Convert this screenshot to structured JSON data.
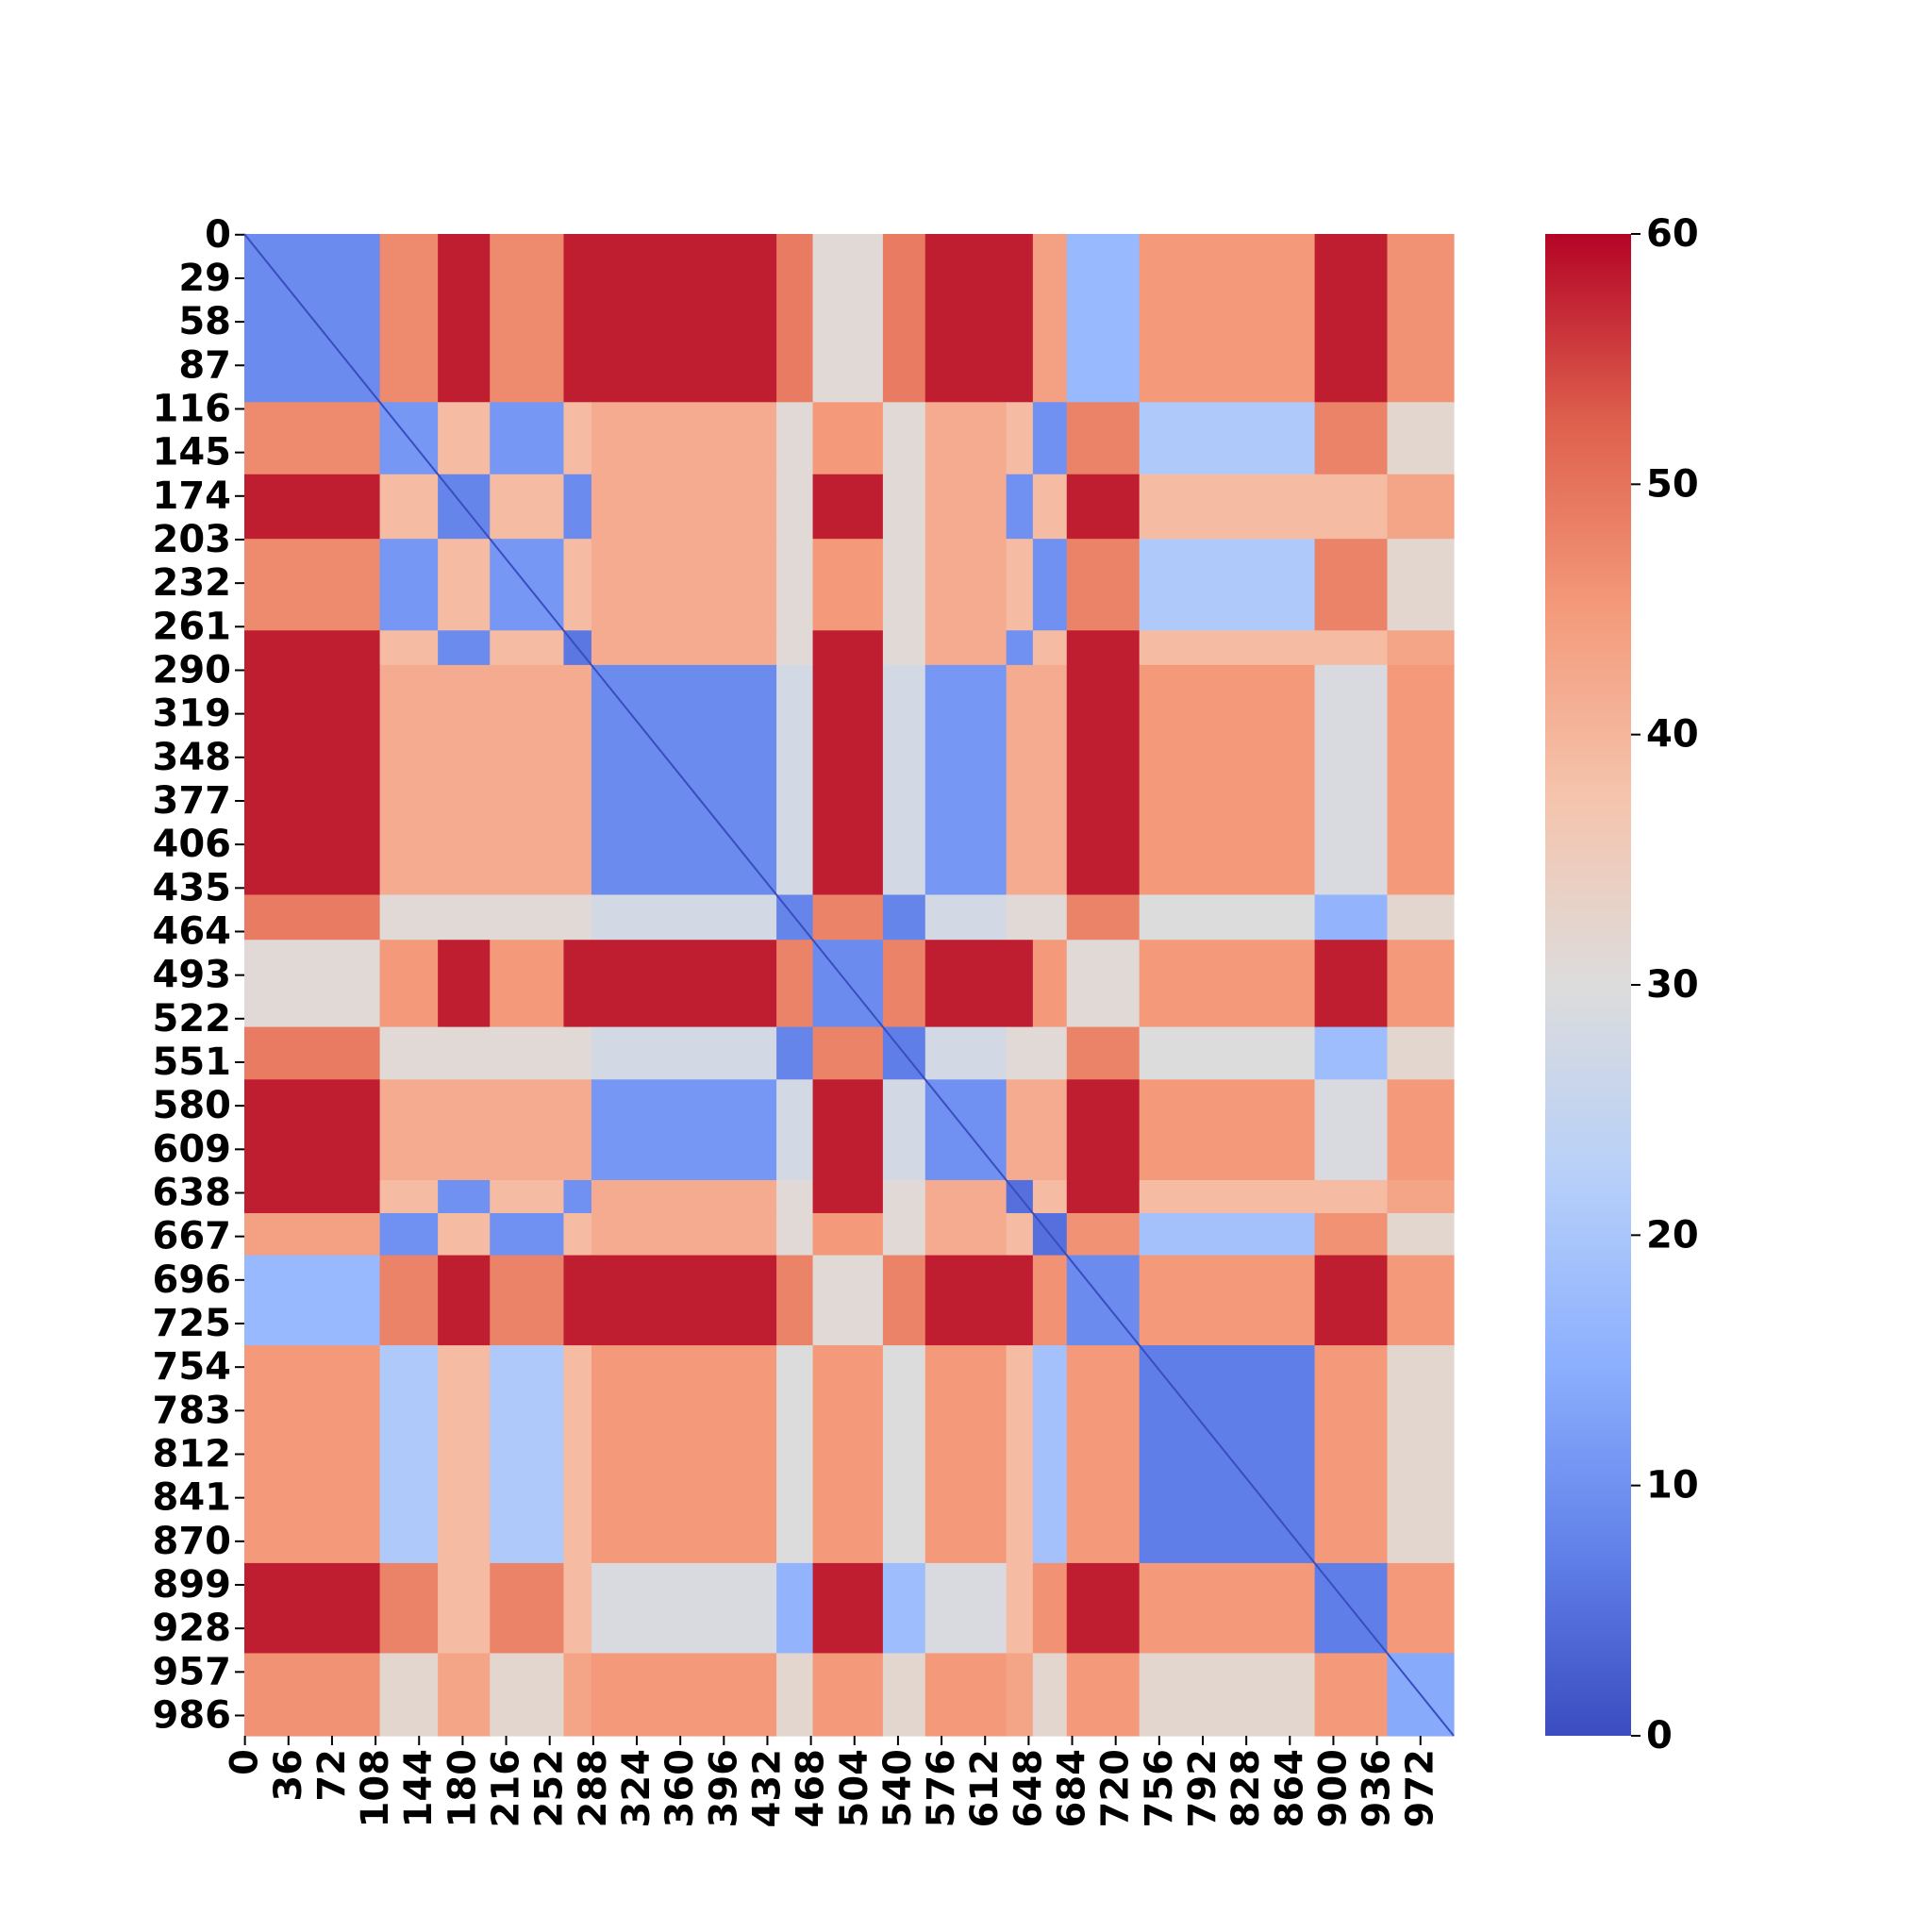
{
  "chart_data": {
    "type": "heatmap",
    "title": "",
    "xlabel": "",
    "ylabel": "",
    "matrix_size": 1000,
    "colormap": "coolwarm",
    "value_range": [
      0,
      60
    ],
    "grid": false,
    "legend": "colorbar-right",
    "x_ticks": [
      "0",
      "36",
      "72",
      "108",
      "144",
      "180",
      "216",
      "252",
      "288",
      "324",
      "360",
      "396",
      "432",
      "468",
      "504",
      "540",
      "576",
      "612",
      "648",
      "684",
      "720",
      "756",
      "792",
      "828",
      "864",
      "900",
      "936",
      "972"
    ],
    "y_ticks": [
      "0",
      "29",
      "58",
      "87",
      "116",
      "145",
      "174",
      "203",
      "232",
      "261",
      "290",
      "319",
      "348",
      "377",
      "406",
      "435",
      "464",
      "493",
      "522",
      "551",
      "580",
      "609",
      "638",
      "667",
      "696",
      "725",
      "754",
      "783",
      "812",
      "841",
      "870",
      "899",
      "928",
      "957",
      "986"
    ],
    "colorbar_ticks": [
      "0",
      "10",
      "20",
      "30",
      "40",
      "50",
      "60"
    ],
    "cluster_boundaries": [
      0,
      112,
      160,
      203,
      264,
      287,
      440,
      470,
      528,
      563,
      630,
      652,
      680,
      740,
      885,
      945,
      1000
    ],
    "block_values": [
      [
        9,
        47,
        58,
        47,
        58,
        58,
        49,
        31,
        49,
        58,
        58,
        44,
        17,
        45,
        58,
        46
      ],
      [
        47,
        11,
        39,
        11,
        39,
        42,
        31,
        45,
        31,
        42,
        39,
        10,
        48,
        21,
        48,
        32
      ],
      [
        58,
        39,
        8,
        39,
        9,
        42,
        31,
        58,
        31,
        42,
        10,
        39,
        58,
        39,
        39,
        43
      ],
      [
        47,
        11,
        39,
        11,
        39,
        42,
        31,
        45,
        31,
        42,
        39,
        10,
        48,
        21,
        48,
        32
      ],
      [
        58,
        39,
        9,
        39,
        6,
        42,
        31,
        58,
        31,
        42,
        10,
        39,
        58,
        39,
        39,
        43
      ],
      [
        58,
        42,
        42,
        42,
        42,
        9,
        28,
        58,
        28,
        11,
        42,
        42,
        58,
        45,
        29,
        45
      ],
      [
        49,
        31,
        31,
        31,
        31,
        28,
        8,
        48,
        8,
        28,
        31,
        31,
        48,
        30,
        16,
        32
      ],
      [
        31,
        45,
        58,
        45,
        58,
        58,
        48,
        9,
        48,
        58,
        58,
        45,
        31,
        45,
        58,
        45
      ],
      [
        49,
        31,
        31,
        31,
        31,
        28,
        8,
        48,
        7,
        28,
        31,
        31,
        48,
        30,
        18,
        32
      ],
      [
        58,
        42,
        42,
        42,
        42,
        11,
        28,
        58,
        28,
        10,
        42,
        42,
        58,
        45,
        29,
        45
      ],
      [
        58,
        39,
        10,
        39,
        10,
        42,
        31,
        58,
        31,
        42,
        5,
        39,
        58,
        39,
        39,
        43
      ],
      [
        44,
        10,
        39,
        10,
        39,
        42,
        31,
        45,
        31,
        42,
        39,
        5,
        46,
        19,
        46,
        32
      ],
      [
        17,
        48,
        58,
        48,
        58,
        58,
        48,
        31,
        48,
        58,
        58,
        46,
        9,
        45,
        58,
        45
      ],
      [
        45,
        21,
        39,
        21,
        39,
        45,
        30,
        45,
        30,
        45,
        39,
        19,
        45,
        7,
        45,
        32
      ],
      [
        58,
        48,
        39,
        48,
        39,
        29,
        16,
        58,
        18,
        29,
        39,
        46,
        58,
        45,
        7,
        45
      ],
      [
        46,
        32,
        43,
        32,
        43,
        45,
        32,
        45,
        32,
        45,
        43,
        32,
        45,
        32,
        45,
        14
      ]
    ]
  }
}
